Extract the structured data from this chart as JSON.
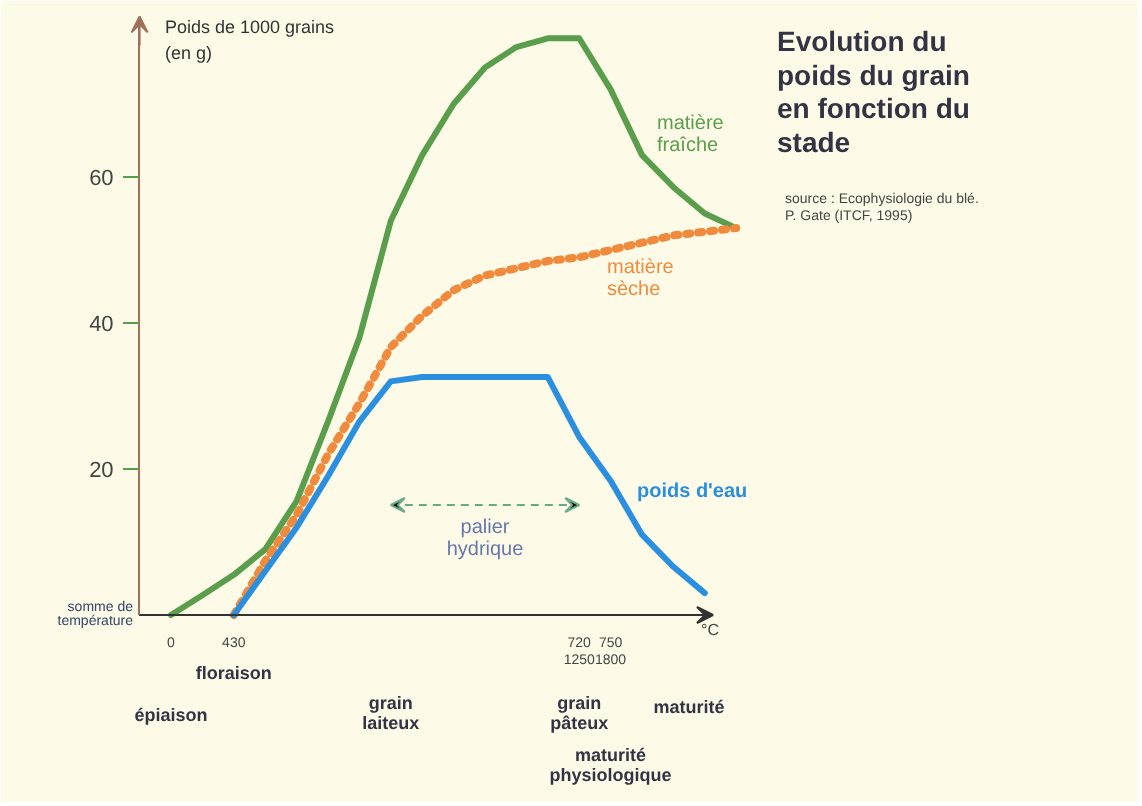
{
  "chart_data": {
    "type": "line",
    "title": "Evolution du poids du grain en fonction du stade",
    "ylabel": "Poids de 1000 grains (en g)",
    "xlabel": "°C",
    "categories": [
      "0",
      null,
      "430",
      null,
      null,
      null,
      null,
      null,
      null,
      null,
      null,
      null,
      null,
      "720\n1250",
      "750\n1800",
      null,
      null,
      null,
      null
    ],
    "series": [
      {
        "name": "matière fraîche",
        "color": "#5a9e4b",
        "values": [
          0,
          2.7,
          5.5,
          9,
          15.6,
          26.5,
          38,
          54,
          63,
          70,
          75,
          77.8,
          79,
          79,
          72,
          63,
          58.6,
          55,
          53
        ]
      },
      {
        "name": "matière sèche",
        "color": "#f08a3c",
        "line_style": "dotted",
        "values": [
          null,
          null,
          0,
          7.4,
          13.7,
          22,
          29,
          36.7,
          41,
          44.5,
          46.5,
          47.5,
          48.5,
          49,
          50,
          51,
          52,
          52.5,
          53
        ]
      },
      {
        "name": "poids d'eau",
        "color": "#2b8fe0",
        "values": [
          null,
          null,
          0,
          6,
          12,
          19,
          26.5,
          32,
          32.6,
          32.6,
          32.6,
          32.6,
          32.6,
          24.4,
          18.4,
          11,
          6.6,
          3,
          null
        ]
      }
    ],
    "ylim": [
      0,
      82
    ],
    "yticks": [
      20,
      40,
      60
    ],
    "grid": false,
    "annotations": [
      "source : Ecophysiologie du blé. P. Gate (ITCF, 1995)",
      "somme de température",
      "palier hydrique",
      "épiaison",
      "floraison",
      "grain laiteux",
      "grain pâteux",
      "maturité physiologique",
      "maturité"
    ]
  }
}
